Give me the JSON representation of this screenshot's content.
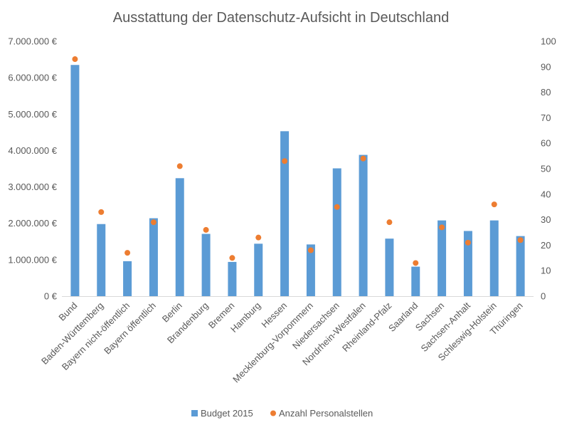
{
  "chart_data": {
    "type": "bar",
    "title": "Ausstattung der Datenschutz-Aufsicht in Deutschland",
    "categories": [
      "Bund",
      "Baden-Württemberg",
      "Bayern nicht-öffentlich",
      "Bayern öffentlich",
      "Berlin",
      "Brandenburg",
      "Bremen",
      "Hamburg",
      "Hessen",
      "Mecklenburg-Vorpommern",
      "Niedersachsen",
      "Nordrhein-Westfalen",
      "Rheinland-Pfalz",
      "Saarland",
      "Sachsen",
      "Sachsen-Anhalt",
      "Schleswig-Holstein",
      "Thüringen"
    ],
    "series": [
      {
        "name": "Budget 2015",
        "type": "bar",
        "axis": "left",
        "color": "#5B9BD5",
        "values": [
          6350000,
          1980000,
          960000,
          2140000,
          3240000,
          1710000,
          940000,
          1440000,
          4530000,
          1420000,
          3510000,
          3880000,
          1580000,
          810000,
          2080000,
          1790000,
          2080000,
          1650000
        ]
      },
      {
        "name": "Anzahl Personalstellen",
        "type": "scatter",
        "axis": "right",
        "color": "#ED7D31",
        "values": [
          93,
          33,
          17,
          29,
          51,
          26,
          15,
          23,
          53,
          18,
          35,
          54,
          29,
          13,
          27,
          21,
          36,
          22
        ]
      }
    ],
    "y_left": {
      "ylim": [
        0,
        7000000
      ],
      "ticks": [
        0,
        1000000,
        2000000,
        3000000,
        4000000,
        5000000,
        6000000,
        7000000
      ],
      "tick_labels": [
        "0 €",
        "1.000.000 €",
        "2.000.000 €",
        "3.000.000 €",
        "4.000.000 €",
        "5.000.000 €",
        "6.000.000 €",
        "7.000.000 €"
      ]
    },
    "y_right": {
      "ylim": [
        0,
        100
      ],
      "ticks": [
        0,
        10,
        20,
        30,
        40,
        50,
        60,
        70,
        80,
        90,
        100
      ],
      "tick_labels": [
        "0",
        "10",
        "20",
        "30",
        "40",
        "50",
        "60",
        "70",
        "80",
        "90",
        "100"
      ]
    },
    "grid": false,
    "legend": "bottom"
  }
}
